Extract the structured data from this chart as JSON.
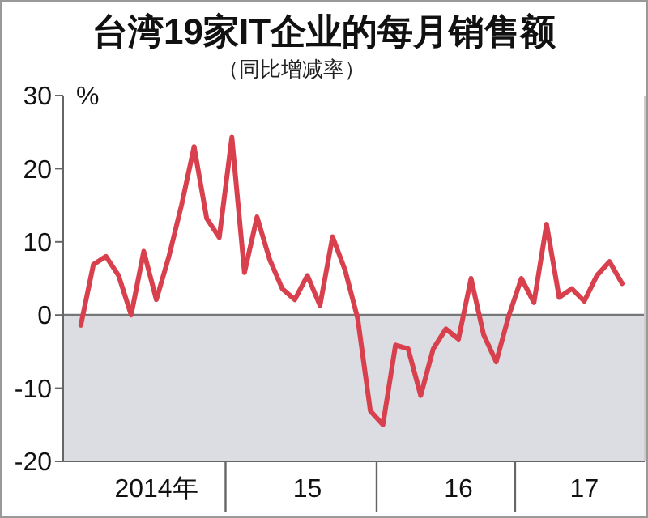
{
  "chart_data": {
    "type": "line",
    "title": "台湾19家IT企业的每月销售额",
    "subtitle": "（同比增减率）",
    "ylabel": "%",
    "categories": [
      null,
      null,
      null,
      null,
      null,
      null,
      "2014年",
      null,
      null,
      null,
      null,
      null,
      null,
      null,
      null,
      null,
      null,
      null,
      "15",
      null,
      null,
      null,
      null,
      null,
      null,
      null,
      null,
      null,
      null,
      null,
      "16",
      null,
      null,
      null,
      null,
      null,
      null,
      null,
      null,
      null,
      "17",
      null,
      null,
      null
    ],
    "series": [
      {
        "color": "#d8404e",
        "values": [
          -1.4,
          6.9,
          8.0,
          5.4,
          0,
          8.7,
          2.1,
          8,
          15,
          23,
          13.2,
          10.6,
          24.3,
          5.8,
          13.4,
          7.6,
          3.6,
          2.1,
          5.4,
          1.3,
          10.7,
          6.1,
          -0.5,
          -13.1,
          -15,
          -4.1,
          -4.6,
          -11,
          -4.6,
          -1.9,
          -3.3,
          5,
          -2.7,
          -6.4,
          -0.1,
          5,
          1.7,
          12.4,
          2.4,
          3.6,
          1.9,
          5.4,
          7.3,
          4.3
        ]
      }
    ],
    "ylim": [
      -20,
      30
    ],
    "yticks": [
      -20,
      -10,
      0,
      10,
      20,
      30
    ],
    "bands": [
      {
        "axis": "y",
        "from": -20,
        "to": 0,
        "color": "#dcdde2"
      }
    ],
    "ref_lines": [
      {
        "axis": "y",
        "value": 0,
        "color": "#777777"
      }
    ],
    "grid": false,
    "marker": "none",
    "line_style": "solid"
  }
}
